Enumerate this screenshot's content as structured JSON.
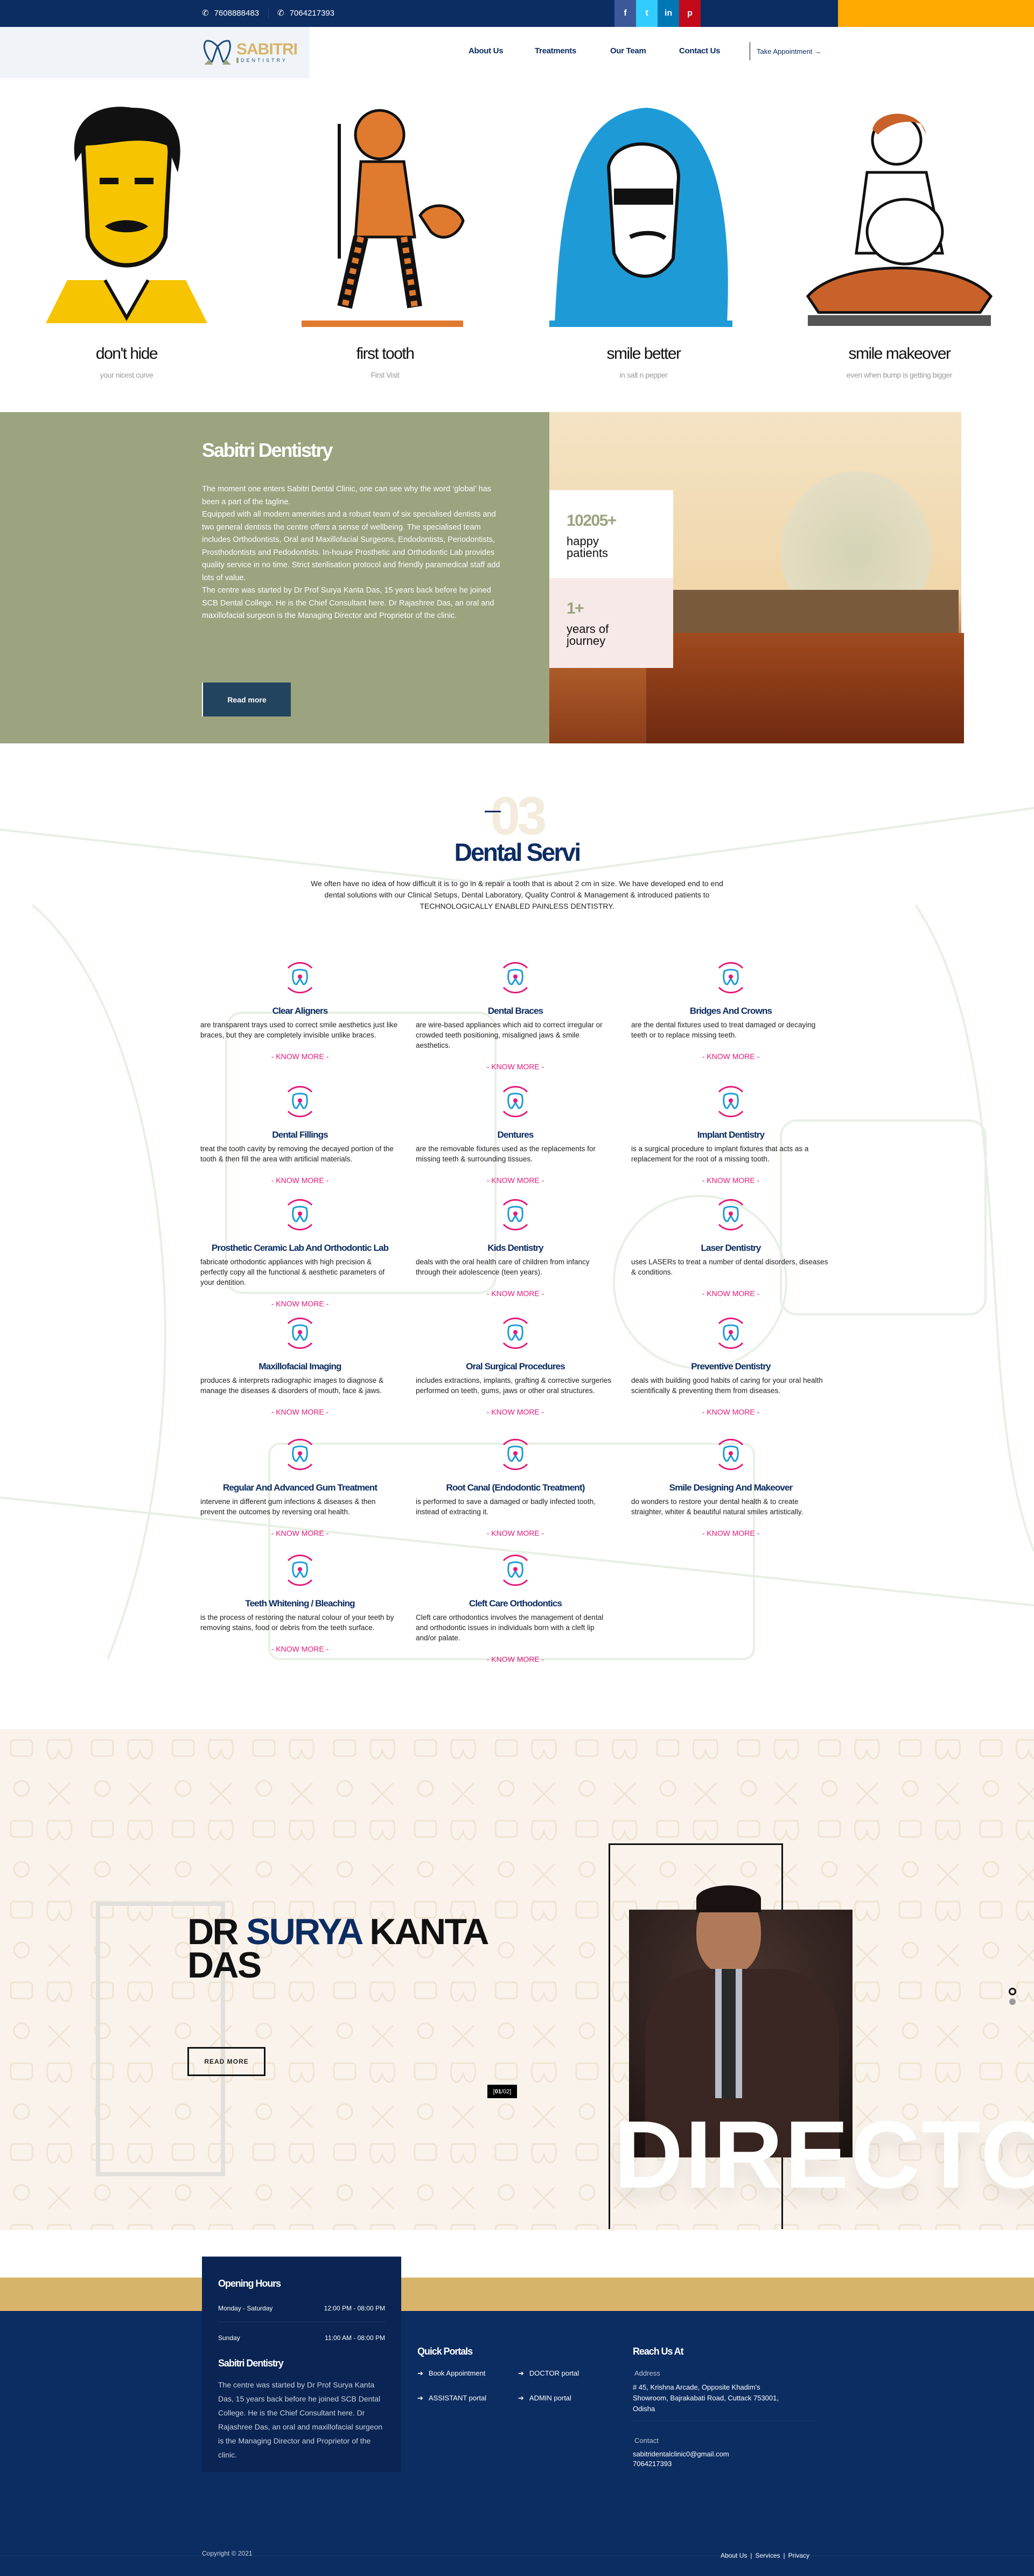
{
  "topbar": {
    "phones": [
      "7608888483",
      "7064217393"
    ],
    "social": [
      {
        "icon": "facebook-icon",
        "glyph": "f",
        "color": "#3b5998"
      },
      {
        "icon": "twitter-icon",
        "glyph": "t",
        "color": "#33ccff"
      },
      {
        "icon": "linkedin-icon",
        "glyph": "in",
        "color": "#0077b5"
      },
      {
        "icon": "pinterest-icon",
        "glyph": "p",
        "color": "#c4091b"
      }
    ],
    "accent": "#ffa800",
    "bg": "#0c2d62"
  },
  "logo": {
    "name": "SABITRI",
    "tagline": "DENTISTRY"
  },
  "nav": {
    "items": [
      "About Us",
      "Treatments",
      "Our Team",
      "Contact Us"
    ],
    "cta": "Take Appointment →"
  },
  "hero": [
    {
      "title": "don't hide",
      "subtitle": "your nicest curve"
    },
    {
      "title": "first tooth",
      "subtitle": "First Visit"
    },
    {
      "title": "smile better",
      "subtitle": "in salt n pepper"
    },
    {
      "title": "smile makeover",
      "subtitle": "even when bump is getting bigger"
    }
  ],
  "about": {
    "title": "Sabitri Dentistry",
    "paragraphs": [
      "The moment one enters Sabitri Dental Clinic, one can see why the word ‘global’ has been a part of the tagline.",
      "Equipped with all modern amenities and a robust team of six specialised dentists and two general dentists the centre offers a sense of wellbeing. The specialised team includes Orthodontists, Oral and Maxillofacial Surgeons, Endodontists, Periodontists, Prosthodontists and Pedodontists. In-house Prosthetic and Orthodontic Lab provides quality service in no time. Strict sterilisation protocol and friendly paramedical staff add lots of value.",
      "The centre was started by Dr Prof Surya Kanta Das, 15 years back before he joined SCB Dental College. He is the Chief Consultant here. Dr Rajashree Das, an oral and maxillofacial surgeon is the Managing Director and Proprietor of the clinic."
    ],
    "button": "Read more",
    "stats": [
      {
        "value": "10205+",
        "label": "happy patients"
      },
      {
        "value": "1+",
        "label": "years of journey"
      }
    ]
  },
  "services": {
    "number": "03",
    "title": "Dental Servi",
    "intro": "We often have no idea of how difficult it is to go in & repair a tooth that is about 2 cm in size. We have developed end to end dental solutions with our Clinical Setups, Dental Laboratory, Quality Control & Management & introduced patients to TECHNOLOGICALLY ENABLED PAINLESS DENTISTRY.",
    "more_label": "- KNOW MORE -",
    "items": [
      {
        "title": "Clear Aligners",
        "desc": "are transparent trays used to correct smile aesthetics just like braces, but they are completely invisible unlike braces.",
        "icon": "aligner-icon"
      },
      {
        "title": "Dental Braces",
        "desc": "are wire-based appliances which aid to correct irregular or crowded teeth positioning, misaligned jaws & smile aesthetics.",
        "icon": "braces-icon"
      },
      {
        "title": "Bridges And Crowns",
        "desc": "are the dental fixtures used to treat damaged or decaying teeth or to replace missing teeth.",
        "icon": "crown-icon"
      },
      {
        "title": "Dental Fillings",
        "desc": "treat the tooth cavity by removing the decayed portion of the tooth & then fill the area with artificial materials.",
        "icon": "filling-icon"
      },
      {
        "title": "Dentures",
        "desc": "are the removable fixtures used as the replacements for missing teeth & surrounding tissues.",
        "icon": "denture-icon"
      },
      {
        "title": "Implant Dentistry",
        "desc": "is a surgical procedure to implant fixtures that acts as a replacement for the root of a missing tooth.",
        "icon": "implant-icon"
      },
      {
        "title": "Prosthetic Ceramic Lab And Orthodontic Lab",
        "desc": "fabricate orthodontic appliances with high precision & perfectly copy all the functional & aesthetic parameters of your dentition.",
        "icon": "lab-flask-icon"
      },
      {
        "title": "Kids Dentistry",
        "desc": "deals with the oral health care of children from infancy through their adolescence (teen years).",
        "icon": "kids-tooth-icon"
      },
      {
        "title": "Laser Dentistry",
        "desc": "uses LASERs to treat a number of dental disorders, diseases & conditions.",
        "icon": "laser-icon"
      },
      {
        "title": "Maxillofacial Imaging",
        "desc": "produces & interprets radiographic images to diagnose & manage the diseases & disorders of mouth, face & jaws.",
        "icon": "xray-icon"
      },
      {
        "title": "Oral Surgical Procedures",
        "desc": "includes extractions, implants, grafting & corrective surgeries performed on teeth, gums, jaws or other oral structures.",
        "icon": "surgery-icon"
      },
      {
        "title": "Preventive Dentistry",
        "desc": "deals with building good habits of caring for your oral health scientifically & preventing them from diseases.",
        "icon": "toothbrush-icon"
      },
      {
        "title": "Regular And Advanced Gum Treatment",
        "desc": "intervene in different gum infections & diseases & then prevent the outcomes by reversing oral health.",
        "icon": "gum-icon"
      },
      {
        "title": "Root Canal (Endodontic Treatment)",
        "desc": "is performed to save a damaged or badly infected tooth, instead of extracting it.",
        "icon": "root-canal-icon"
      },
      {
        "title": "Smile Designing And Makeover",
        "desc": "do wonders to restore your dental health & to create straighter, whiter & beautiful natural smiles artistically.",
        "icon": "smile-icon"
      },
      {
        "title": "Teeth Whitening / Bleaching",
        "desc": "is the process of restoring the natural colour of your teeth by removing stains, food or debris from the teeth surface.",
        "icon": "whitening-icon"
      },
      {
        "title": "Cleft Care Orthodontics",
        "desc": "Cleft care orthodontics involves the management of dental and orthodontic issues in individuals born with a cleft lip and/or palate.",
        "icon": "cleft-icon"
      }
    ]
  },
  "director": {
    "name_part1": "DR ",
    "name_highlight": "SURYA",
    "name_part2": " KANTA",
    "name_line2": "DAS",
    "button": "READ MORE",
    "role": "DIRECTOR",
    "slide_current": "01",
    "slide_total": "02"
  },
  "footer": {
    "hours_title": "Opening Hours",
    "hours": [
      {
        "day": "Monday - Saturday",
        "time": "12:00 PM - 08:00 PM"
      },
      {
        "day": "Sunday",
        "time": "11:00 AM - 08:00 PM"
      }
    ],
    "about_title": "Sabitri Dentistry",
    "about_text": "The centre was started by Dr Prof Surya Kanta Das, 15 years back before he joined SCB Dental College. He is the Chief Consultant here. Dr Rajashree Das, an oral and maxillofacial surgeon is the Managing Director and Proprietor of the clinic.",
    "portals_title": "Quick Portals",
    "portals": [
      "Book Appointment",
      "DOCTOR portal",
      "ASSISTANT portal",
      "ADMIN portal"
    ],
    "reach_title": "Reach Us At",
    "address_label": "Address",
    "address": "# 45, Krishna Arcade, Opposite Khadim's Showroom, Bajrakabati Road, Cuttack 753001, Odisha",
    "contact_label": "Contact",
    "email": "sabitridentalclinic0@gmail.com",
    "phone": "7064217393",
    "copyright": "Copyright © 2021",
    "links": [
      "About Us",
      "Services",
      "Privacy"
    ]
  }
}
